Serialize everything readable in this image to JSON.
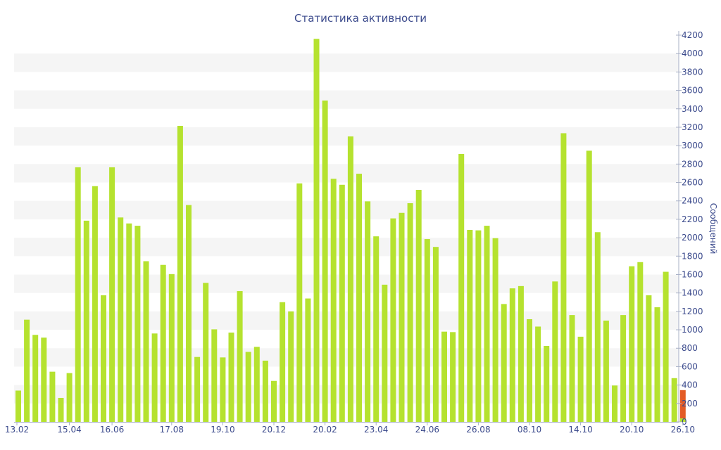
{
  "chart_data": {
    "type": "bar",
    "title": "Статистика активности",
    "xlabel": "",
    "ylabel": "Сообщений",
    "ylim": [
      0,
      4200
    ],
    "yticks": [
      0,
      200,
      400,
      600,
      800,
      1000,
      1200,
      1400,
      1600,
      1800,
      2000,
      2200,
      2400,
      2600,
      2800,
      3000,
      3200,
      3400,
      3600,
      3800,
      4000,
      4200
    ],
    "x_tick_labels": [
      "13.02",
      "15.04",
      "16.06",
      "17.08",
      "19.10",
      "20.12",
      "20.02",
      "23.04",
      "24.06",
      "26.08",
      "08.10",
      "14.10",
      "20.10",
      "26.10"
    ],
    "x_tick_positions": [
      0,
      6,
      11,
      18,
      24,
      30,
      36,
      42,
      48,
      54,
      60,
      66,
      72,
      78
    ],
    "grid": "horizontal bands",
    "axis_position": "right",
    "colors": {
      "bar": "#b5e22f",
      "highlight": "#e35b25",
      "band": "#f5f5f5",
      "text": "#3b4a8c",
      "axis": "#a8b0c6"
    },
    "values": [
      340,
      1110,
      945,
      915,
      545,
      260,
      530,
      2765,
      2185,
      2560,
      1375,
      2765,
      2220,
      2155,
      2130,
      1745,
      960,
      1705,
      1605,
      3215,
      2355,
      705,
      1510,
      1005,
      700,
      970,
      1420,
      760,
      815,
      665,
      445,
      1300,
      1200,
      2590,
      1340,
      4160,
      3490,
      2640,
      2575,
      3100,
      2695,
      2395,
      2015,
      1490,
      2210,
      2270,
      2375,
      2520,
      1985,
      1900,
      980,
      975,
      2910,
      2085,
      2080,
      2130,
      1995,
      1280,
      1450,
      1475,
      1115,
      1035,
      825,
      1525,
      3135,
      1160,
      925,
      2945,
      2060,
      1100,
      395,
      1160,
      1690,
      1735,
      1375,
      1245,
      1630,
      475,
      345
    ],
    "highlight_index": 78
  }
}
